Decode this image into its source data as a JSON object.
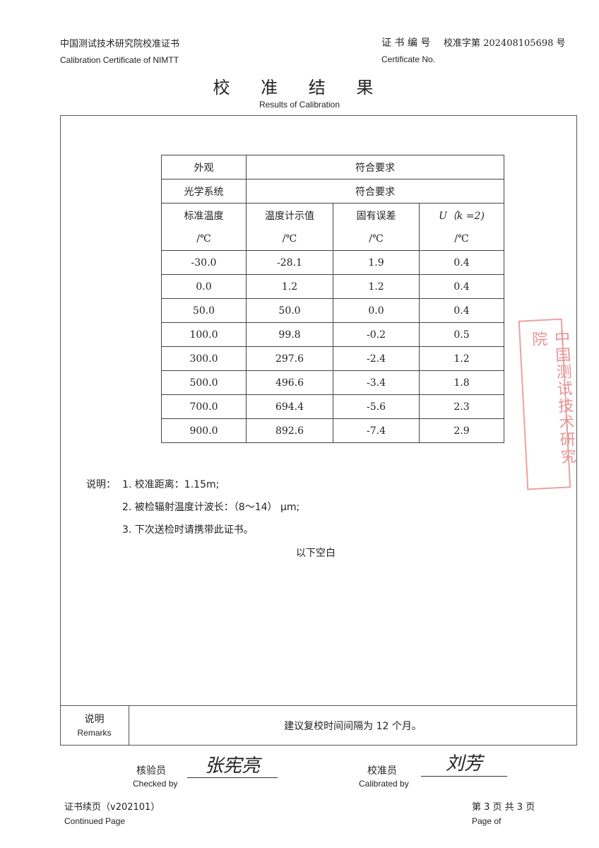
{
  "header": {
    "org_cn": "中国测试技术研究院校准证书",
    "org_en": "Calibration Certificate of NIMTT",
    "cert_no_label_cn": "证 书 编 号",
    "cert_no_value": "校准字第 202408105698 号",
    "cert_no_label_en": "Certificate No."
  },
  "title": {
    "cn": "校 准 结 果",
    "en": "Results of Calibration"
  },
  "table": {
    "appearance_label": "外观",
    "appearance_value": "符合要求",
    "optics_label": "光学系统",
    "optics_value": "符合要求",
    "headers": [
      {
        "name": "标准温度",
        "unit": "/℃"
      },
      {
        "name": "温度计示值",
        "unit": "/℃"
      },
      {
        "name": "固有误差",
        "unit": "/℃"
      },
      {
        "name": "U（k =2)",
        "unit": "/℃"
      }
    ],
    "rows": [
      [
        "-30.0",
        "-28.1",
        "1.9",
        "0.4"
      ],
      [
        "0.0",
        "1.2",
        "1.2",
        "0.4"
      ],
      [
        "50.0",
        "50.0",
        "0.0",
        "0.4"
      ],
      [
        "100.0",
        "99.8",
        "-0.2",
        "0.5"
      ],
      [
        "300.0",
        "297.6",
        "-2.4",
        "1.2"
      ],
      [
        "500.0",
        "496.6",
        "-3.4",
        "1.8"
      ],
      [
        "700.0",
        "694.4",
        "-5.6",
        "2.3"
      ],
      [
        "900.0",
        "892.6",
        "-7.4",
        "2.9"
      ]
    ]
  },
  "notes": {
    "label": "说明：",
    "items": [
      "1.  校准距离：1.15m;",
      "2.  被检辐射温度计波长：（8～14） μm;",
      "3.  下次送检时请携带此证书。"
    ],
    "blank": "以下空白"
  },
  "remarks": {
    "label_cn": "说明",
    "label_en": "Remarks",
    "text": "建议复校时间间隔为 12 个月。"
  },
  "signatures": {
    "checked_cn": "核验员",
    "checked_en": "Checked by",
    "checked_sig": "张宪亮",
    "calibrated_cn": "校准员",
    "calibrated_en": "Calibrated by",
    "calibrated_sig": "刘芳"
  },
  "stamp": {
    "text": "中国测试技术研究院"
  },
  "footer": {
    "left_cn": "证书续页（v202101）",
    "left_en": "Continued Page",
    "right_cn": "第 3 页 共 3 页",
    "right_en": "Page of"
  },
  "colors": {
    "stamp": "#e07a7a",
    "text": "#222222"
  }
}
